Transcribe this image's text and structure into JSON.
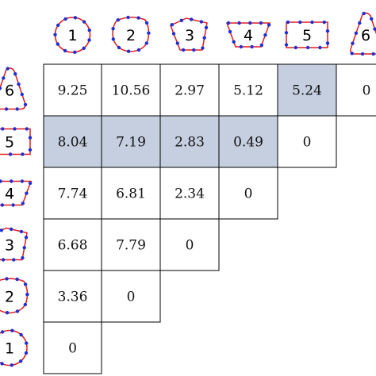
{
  "colors": {
    "outline": "#e31a1c",
    "points": "#1f2fd6",
    "highlight": "#c5cfe0",
    "grid": "#000000"
  },
  "columns": [
    {
      "label": "1",
      "icon": "circle-shape-icon"
    },
    {
      "label": "2",
      "icon": "blob-shape-icon"
    },
    {
      "label": "3",
      "icon": "pentagon-shape-icon"
    },
    {
      "label": "4",
      "icon": "trapezoid-shape-icon"
    },
    {
      "label": "5",
      "icon": "rectangle-shape-icon"
    },
    {
      "label": "6",
      "icon": "rounded-triangle-shape-icon"
    }
  ],
  "rows": [
    {
      "label": "6",
      "icon": "rounded-triangle-shape-icon",
      "values": [
        "9.25",
        "10.56",
        "2.97",
        "5.12",
        "5.24",
        "0"
      ],
      "highlight": [
        4
      ]
    },
    {
      "label": "5",
      "icon": "rectangle-shape-icon",
      "values": [
        "8.04",
        "7.19",
        "2.83",
        "0.49",
        "0"
      ],
      "highlight": [
        0,
        1,
        2,
        3
      ]
    },
    {
      "label": "4",
      "icon": "trapezoid-shape-icon",
      "values": [
        "7.74",
        "6.81",
        "2.34",
        "0"
      ],
      "highlight": []
    },
    {
      "label": "3",
      "icon": "pentagon-shape-icon",
      "values": [
        "6.68",
        "7.79",
        "0"
      ],
      "highlight": []
    },
    {
      "label": "2",
      "icon": "blob-shape-icon",
      "values": [
        "3.36",
        "0"
      ],
      "highlight": []
    },
    {
      "label": "1",
      "icon": "circle-shape-icon",
      "values": [
        "0"
      ],
      "highlight": []
    }
  ]
}
